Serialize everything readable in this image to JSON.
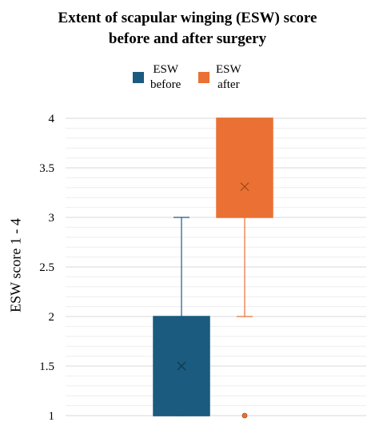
{
  "chart_data": {
    "type": "box",
    "title": "Extent of scapular winging (ESW) score before and after surgery",
    "title_lines": [
      "Extent of scapular winging (ESW) score",
      "before and after surgery"
    ],
    "ylabel": "ESW score 1 - 4",
    "xlabel": "",
    "ylim": [
      1,
      4
    ],
    "yticks": [
      "1",
      "1.5",
      "2",
      "2.5",
      "3",
      "3.5",
      "4"
    ],
    "grid": true,
    "legend_position": "top",
    "series": [
      {
        "name": "ESW before",
        "name_lines": [
          "ESW",
          "before"
        ],
        "color": "#1b5b7f",
        "whisker_low": 1,
        "q1": 1,
        "median": 1,
        "q3": 2,
        "whisker_high": 3,
        "mean": 1.5,
        "outliers": []
      },
      {
        "name": "ESW after",
        "name_lines": [
          "ESW",
          "after"
        ],
        "color": "#ea7034",
        "whisker_low": 2,
        "q1": 3,
        "median": 4,
        "q3": 4,
        "whisker_high": 4,
        "mean": 3.31,
        "outliers": [
          1
        ]
      }
    ]
  }
}
